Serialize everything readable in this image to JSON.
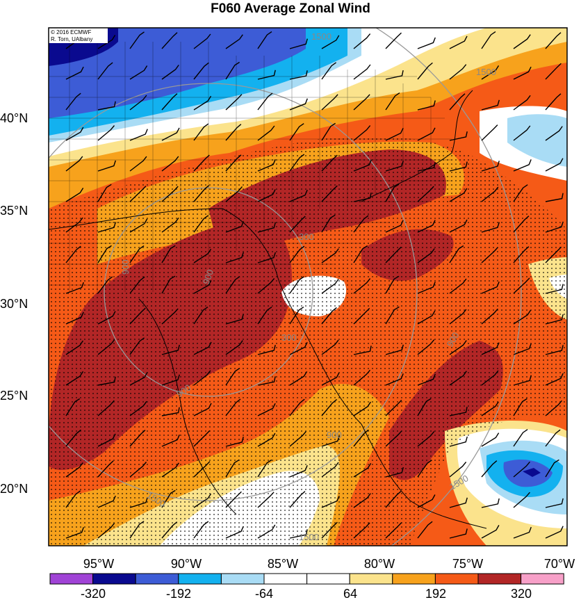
{
  "title": "F060 Average Zonal Wind",
  "credit": {
    "line1": "© 2016 ECMWF",
    "line2": "R. Torn, UAlbany"
  },
  "lat_labels": [
    "40°N",
    "35°N",
    "30°N",
    "25°N",
    "20°N"
  ],
  "lon_labels": [
    "95°W",
    "90°W",
    "85°W",
    "80°W",
    "75°W",
    "70°W"
  ],
  "colorbar": {
    "labels": [
      "-320",
      "-192",
      "-64",
      "64",
      "192",
      "320"
    ],
    "colors": [
      "#a043d6",
      "#0a0a8f",
      "#3d5cd6",
      "#13b1ef",
      "#a9dcf5",
      "#ffffff",
      "#ffffff",
      "#fbe38c",
      "#f7a21c",
      "#f55a17",
      "#b22626",
      "#f7a0c8"
    ]
  },
  "contour_labels": [
    "1500",
    "1500",
    "900",
    "900",
    "900",
    "900",
    "300",
    "300",
    "1500",
    "1500",
    "900",
    "1500"
  ],
  "map_colors": {
    "deep_blue": "#0a0a8f",
    "blue": "#3d5cd6",
    "light_blue": "#13b1ef",
    "pale_blue": "#a9dcf5",
    "white": "#ffffff",
    "yellow": "#fbe38c",
    "orange": "#f7a21c",
    "red_orange": "#f55a17",
    "dark_red": "#b22626"
  }
}
